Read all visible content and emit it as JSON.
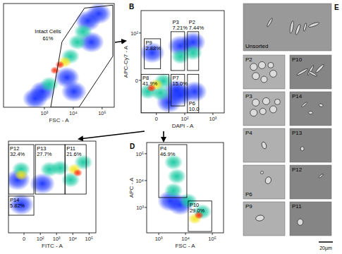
{
  "chart_data": [
    {
      "type": "scatter",
      "x_label": "FSC - A",
      "log": true,
      "xlim": [
        36,
        262144
      ],
      "ylim": [
        36,
        262144
      ],
      "xticks": [
        {
          "value": 1000,
          "label": "10³"
        },
        {
          "value": 10000,
          "label": "10⁴"
        },
        {
          "value": 100000,
          "label": "10⁵"
        }
      ],
      "tick_labels": "x",
      "x": [
        2320,
        3440,
        5090,
        7980,
        14000,
        21900,
        32300,
        1480,
        850,
        6040,
        75900,
        10500,
        480,
        42700
      ],
      "values": [
        890,
        1430,
        1820,
        2950,
        9800,
        24200,
        60000,
        270,
        146,
        490,
        110000,
        146,
        80,
        9800
      ],
      "density": [
        4,
        4,
        3,
        2,
        2,
        2,
        1,
        2,
        1,
        1,
        1,
        1,
        1,
        1
      ],
      "gates": [
        {
          "label": "Intact Cells",
          "value": 61,
          "value_label": "61%",
          "points": [
            [
              1660,
              36
            ],
            [
              4070,
              10000
            ],
            [
              24500,
              178000
            ],
            [
              234000,
              229000
            ],
            [
              234000,
              2950
            ],
            [
              15800,
              36
            ]
          ]
        }
      ]
    },
    {
      "type": "scatter",
      "title": "B",
      "x_label": "DAPI - A",
      "y_label": "APC-Cy7 - A",
      "log": true,
      "xlim": [
        -32,
        2520
      ],
      "ylim": [
        -47,
        302
      ],
      "xticks": [
        0,
        {
          "value": 100,
          "label": "10²"
        },
        {
          "value": 1000,
          "label": "10³"
        }
      ],
      "yticks": [
        0,
        {
          "value": 100,
          "label": "10²"
        }
      ],
      "x": [
        -8.3,
        0,
        -14.9,
        7,
        12.1,
        48,
        69,
        69,
        198,
        198,
        -7,
        222,
        69,
        24.4
      ],
      "values": [
        -7.8,
        -4.2,
        -11.6,
        -13.3,
        -0.7,
        -10,
        29,
        52,
        36,
        63,
        36,
        -11.6,
        -15.8,
        -25.8
      ],
      "density": [
        4,
        3,
        2,
        2,
        2,
        1,
        2,
        1,
        2,
        1,
        1,
        1,
        1,
        1
      ],
      "gates": [
        {
          "label": "P9",
          "value": 2.88,
          "value_label": "2.88%",
          "x": [
            -23,
            7
          ],
          "y": [
            12,
            75
          ]
        },
        {
          "label": "P3",
          "value": 7.21,
          "value_label": "7.21%",
          "x": [
            30,
            99
          ],
          "y": [
            10,
            107
          ]
        },
        {
          "label": "P2",
          "value": 7.44,
          "value_label": "7.44%",
          "x": [
            125,
            315
          ],
          "y": [
            10,
            107
          ]
        },
        {
          "label": "P8",
          "value": 41.9,
          "value_label": "41.9%",
          "x": [
            -32,
            24
          ],
          "y": [
            -47,
            6
          ]
        },
        {
          "label": "P7",
          "value": 15.0,
          "value_label": "15.0%",
          "x": [
            30,
            99
          ],
          "y": [
            -32,
            6
          ]
        },
        {
          "label": "P6",
          "value": 10.0,
          "value_label": "10.0",
          "x": [
            125,
            315
          ],
          "y": [
            -47,
            6
          ]
        }
      ]
    },
    {
      "type": "scatter",
      "x_label": "FITC - A",
      "log": true,
      "xlim": [
        -89,
        262144
      ],
      "ylim": [
        -100,
        1000
      ],
      "xticks": [
        0,
        {
          "value": 100,
          "label": "10²"
        },
        {
          "value": 1000,
          "label": "10³"
        },
        {
          "value": 10000,
          "label": "10⁴"
        },
        {
          "value": 100000,
          "label": "10⁵"
        }
      ],
      "tick_labels": "x",
      "x": [
        -8.2,
        -20.5,
        366,
        1640,
        12100,
        20000,
        7350,
        -8.2,
        134,
        44500,
        -8.2
      ],
      "values": [
        119,
        52,
        119,
        131,
        119,
        90,
        52,
        -3.6,
        38,
        202,
        76
      ],
      "density": [
        2,
        1,
        2,
        2,
        3,
        4,
        2,
        1,
        1,
        2,
        3
      ],
      "gates": [
        {
          "label": "P12",
          "value": 32.4,
          "value_label": "32.4%",
          "x": [
            -89,
            38
          ],
          "y": [
            13,
            768
          ]
        },
        {
          "label": "P13",
          "value": 27.7,
          "value_label": "27.7%",
          "x": [
            48,
            3300
          ],
          "y": [
            13,
            768
          ]
        },
        {
          "label": "P11",
          "value": 21.6,
          "value_label": "21.6%",
          "x": [
            3300,
            66000
          ],
          "y": [
            13,
            768
          ]
        },
        {
          "label": "P14",
          "value": 5.82,
          "value_label": "5.82%",
          "x": [
            -89,
            38
          ],
          "y": [
            -23,
            9.5
          ]
        }
      ]
    },
    {
      "type": "scatter",
      "title": "D",
      "x_label": "FSC - A",
      "y_label": "APC - A",
      "log": true,
      "xlim": [
        355,
        262144
      ],
      "ylim": [
        112,
        262144
      ],
      "xticks": [
        {
          "value": 1000,
          "label": "10³"
        },
        {
          "value": 10000,
          "label": "10⁴"
        },
        {
          "value": 100000,
          "label": "10⁵"
        }
      ],
      "yticks": [
        {
          "value": 1000,
          "label": "10³"
        },
        {
          "value": 10000,
          "label": "10⁴"
        },
        {
          "value": 100000,
          "label": "10⁵"
        }
      ],
      "x": [
        3550,
        4730,
        3550,
        31600,
        22400,
        42200,
        6300,
        2660,
        12600
      ],
      "values": [
        48300,
        14400,
        4270,
        510,
        380,
        690,
        1260,
        1740,
        1740
      ],
      "density": [
        2,
        2,
        2,
        4,
        3,
        2,
        1,
        1,
        2
      ],
      "gates": [
        {
          "label": "P4",
          "value": 46.9,
          "value_label": "46.9%",
          "x": [
            1000,
            11200
          ],
          "y": [
            2330,
            219000
          ]
        },
        {
          "label": "P10",
          "value": 29.0,
          "value_label": "29.0%",
          "x": [
            12600,
            95000
          ],
          "y": [
            126,
            1740
          ]
        }
      ]
    }
  ],
  "micrographs": {
    "title": "E",
    "tiles": [
      {
        "label": "Unsorted"
      },
      {
        "label": "P2"
      },
      {
        "label": "P10"
      },
      {
        "label": "P3"
      },
      {
        "label": "P14"
      },
      {
        "label": "P4"
      },
      {
        "label": "P13"
      },
      {
        "label": "P6"
      },
      {
        "label": "P12"
      },
      {
        "label": "P9"
      },
      {
        "label": "P11"
      }
    ],
    "scale_bar": "20µm"
  }
}
